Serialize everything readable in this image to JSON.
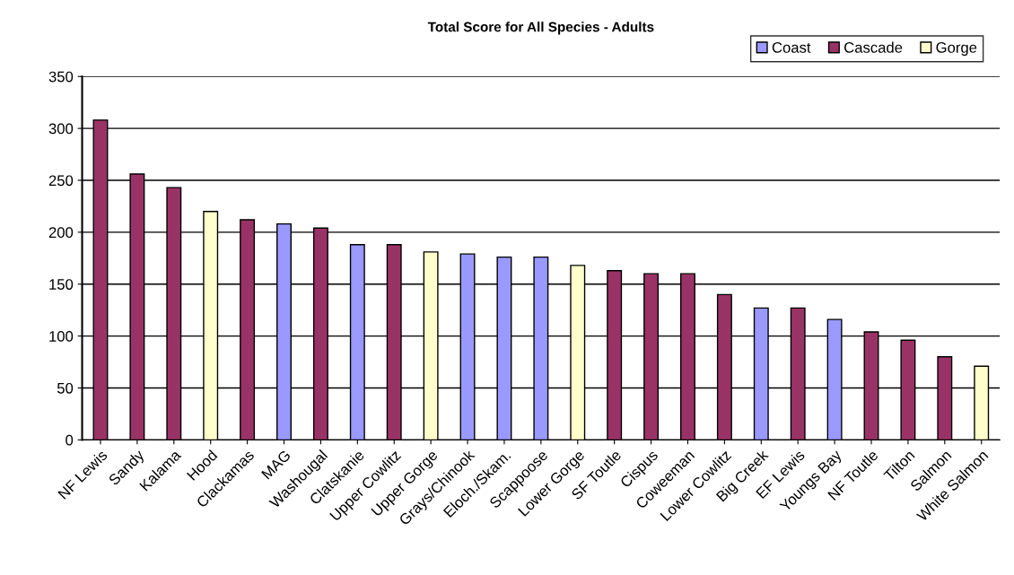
{
  "chart_data": {
    "type": "bar",
    "title": "Total Score for All Species - Adults",
    "categories": [
      "NF Lewis",
      "Sandy",
      "Kalama",
      "Hood",
      "Clackamas",
      "MAG",
      "Washougal",
      "Clatskanie",
      "Upper Cowlitz",
      "Upper Gorge",
      "Grays/Chinook",
      "Eloch./Skam.",
      "Scappoose",
      "Lower Gorge",
      "SF Toutle",
      "Cispus",
      "Coweeman",
      "Lower Cowlitz",
      "Big Creek",
      "EF Lewis",
      "Youngs Bay",
      "NF Toutle",
      "Tilton",
      "Salmon",
      "White Salmon"
    ],
    "series": [
      {
        "name": "Coast",
        "color": "#9999ff",
        "values": [
          null,
          null,
          null,
          null,
          null,
          208,
          null,
          188,
          null,
          null,
          179,
          176,
          176,
          null,
          null,
          null,
          null,
          null,
          127,
          null,
          116,
          null,
          null,
          null,
          null
        ]
      },
      {
        "name": "Cascade",
        "color": "#993366",
        "values": [
          308,
          256,
          243,
          null,
          212,
          null,
          204,
          null,
          188,
          null,
          null,
          null,
          null,
          null,
          163,
          160,
          160,
          140,
          null,
          127,
          null,
          104,
          96,
          80,
          null
        ]
      },
      {
        "name": "Gorge",
        "color": "#ffffcc",
        "values": [
          null,
          null,
          null,
          220,
          null,
          null,
          null,
          null,
          null,
          181,
          null,
          null,
          null,
          168,
          null,
          null,
          null,
          null,
          null,
          null,
          null,
          null,
          null,
          null,
          71
        ]
      }
    ],
    "ylim": [
      0,
      350
    ],
    "yticks": [
      0,
      50,
      100,
      150,
      200,
      250,
      300,
      350
    ],
    "grid": "y",
    "legend": "top right"
  }
}
